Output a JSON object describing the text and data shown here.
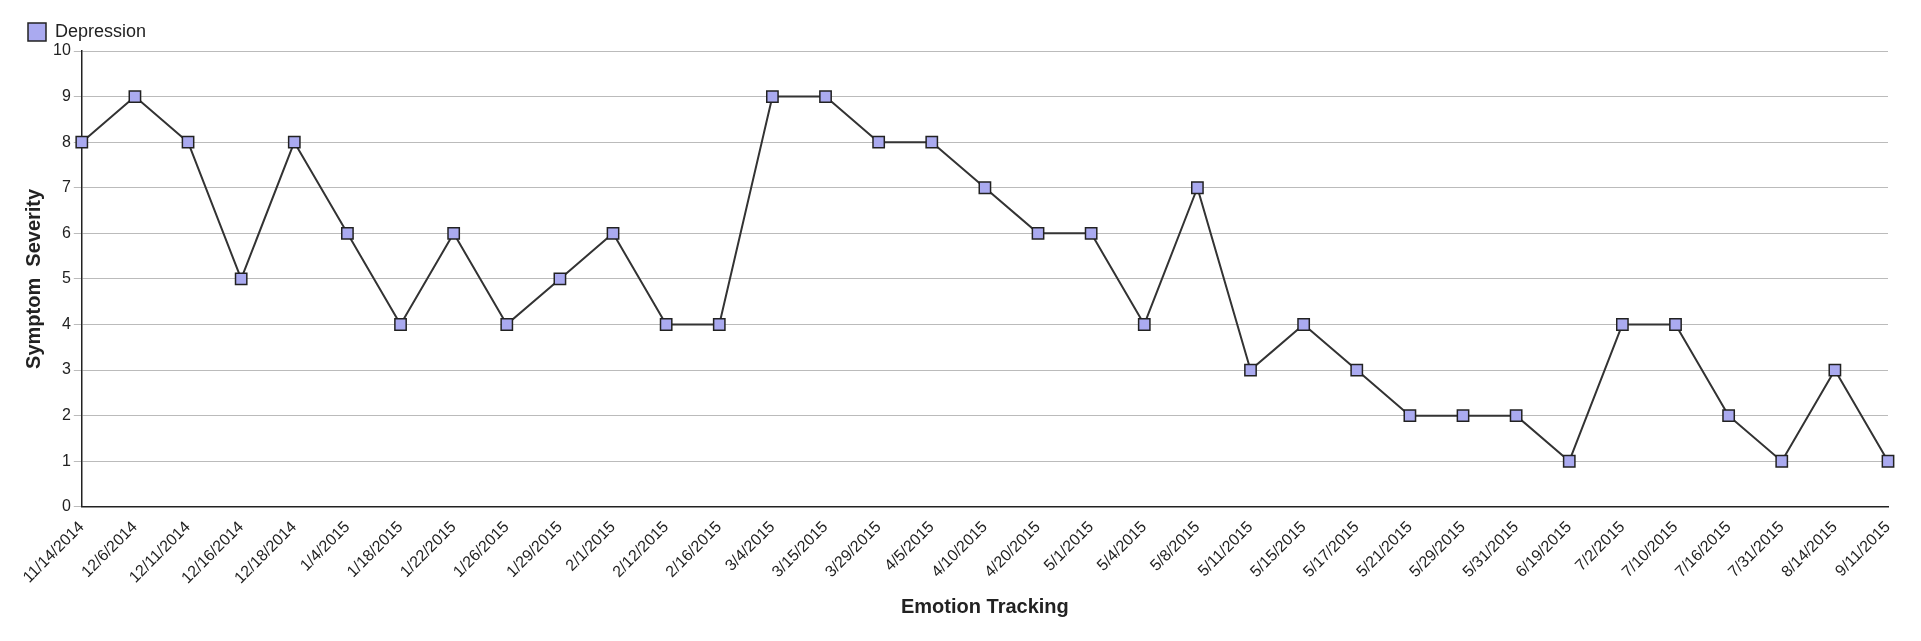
{
  "chart_data": {
    "type": "line",
    "xlabel": "Emotion Tracking",
    "ylabel": "Symptom  Severity",
    "categories": [
      "11/14/2014",
      "12/6/2014",
      "12/11/2014",
      "12/16/2014",
      "12/18/2014",
      "1/4/2015",
      "1/18/2015",
      "1/22/2015",
      "1/26/2015",
      "1/29/2015",
      "2/1/2015",
      "2/12/2015",
      "2/16/2015",
      "3/4/2015",
      "3/15/2015",
      "3/29/2015",
      "4/5/2015",
      "4/10/2015",
      "4/20/2015",
      "5/1/2015",
      "5/4/2015",
      "5/8/2015",
      "5/11/2015",
      "5/15/2015",
      "5/17/2015",
      "5/21/2015",
      "5/29/2015",
      "5/31/2015",
      "6/19/2015",
      "7/2/2015",
      "7/10/2015",
      "7/16/2015",
      "7/31/2015",
      "8/14/2015",
      "9/11/2015"
    ],
    "series": [
      {
        "name": "Depression",
        "color": "#aaaaf0",
        "values": [
          8,
          9,
          8,
          5,
          8,
          6,
          4,
          6,
          4,
          5,
          6,
          4,
          4,
          9,
          9,
          8,
          8,
          7,
          6,
          6,
          4,
          7,
          3,
          4,
          3,
          2,
          2,
          2,
          1,
          4,
          4,
          2,
          1,
          3,
          1
        ]
      }
    ],
    "ylim": [
      0,
      10
    ],
    "yticks": [
      0,
      1,
      2,
      3,
      4,
      5,
      6,
      7,
      8,
      9,
      10
    ],
    "grid": "y",
    "legend": "top left",
    "marker": "square",
    "line_style": "solid"
  }
}
